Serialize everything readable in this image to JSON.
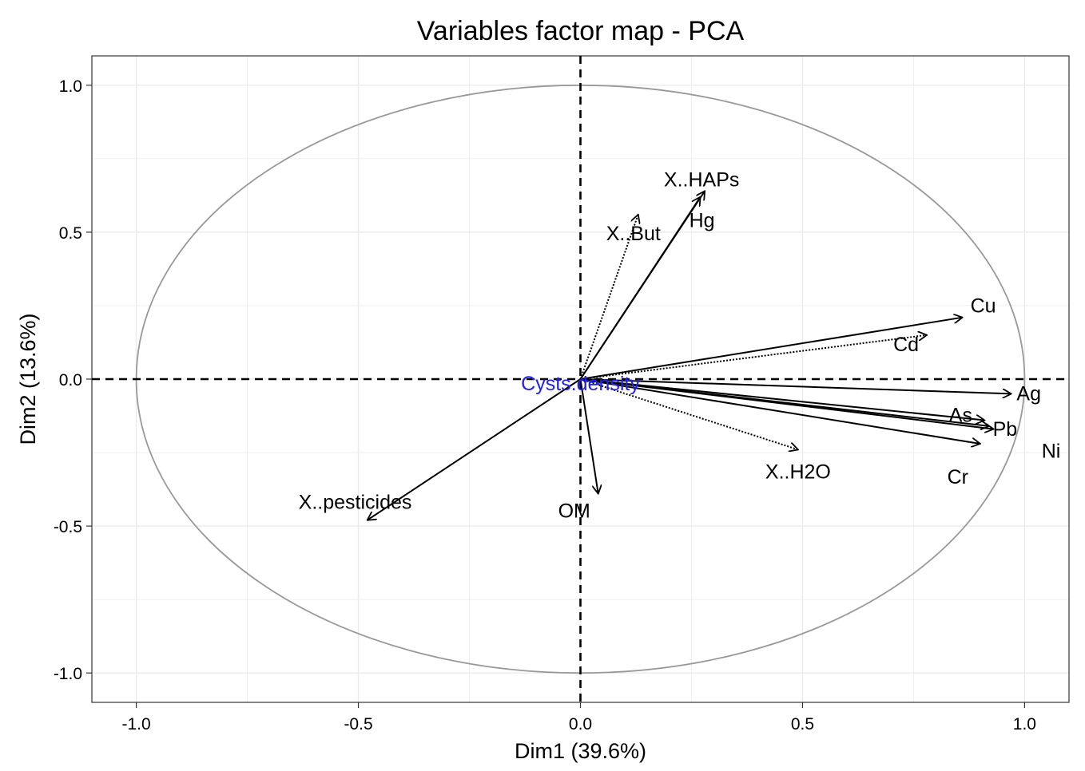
{
  "chart_data": {
    "type": "scatter",
    "subtype": "pca-variables-factor-map",
    "title": "Variables factor map - PCA",
    "xlabel": "Dim1 (39.6%)",
    "ylabel": "Dim2 (13.6%)",
    "xlim": [
      -1.1,
      1.1
    ],
    "ylim": [
      -1.1,
      1.1
    ],
    "x_ticks": [
      -1.0,
      -0.5,
      0.0,
      0.5,
      1.0
    ],
    "y_ticks": [
      -1.0,
      -0.5,
      0.0,
      0.5,
      1.0
    ],
    "x_tick_labels": [
      "-1.0",
      "-0.5",
      "0.0",
      "0.5",
      "1.0"
    ],
    "y_tick_labels": [
      "-1.0",
      "-0.5",
      "0.0",
      "0.5",
      "1.0"
    ],
    "grid": true,
    "unit_circle": true,
    "variables": [
      {
        "name": "Cu",
        "x": 0.86,
        "y": 0.21
      },
      {
        "name": "Cd",
        "x": 0.78,
        "y": 0.15
      },
      {
        "name": "Ag",
        "x": 0.97,
        "y": -0.05
      },
      {
        "name": "As",
        "x": 0.91,
        "y": -0.14
      },
      {
        "name": "Pb",
        "x": 0.92,
        "y": -0.16
      },
      {
        "name": "Ni",
        "x": 0.93,
        "y": -0.17
      },
      {
        "name": "Cr",
        "x": 0.9,
        "y": -0.22
      },
      {
        "name": "X..H2O",
        "x": 0.49,
        "y": -0.24
      },
      {
        "name": "X..HAPs",
        "x": 0.28,
        "y": 0.64
      },
      {
        "name": "Hg",
        "x": 0.27,
        "y": 0.62
      },
      {
        "name": "X..But",
        "x": 0.13,
        "y": 0.56
      },
      {
        "name": "OM",
        "x": 0.04,
        "y": -0.39
      },
      {
        "name": "X..pesticides",
        "x": -0.48,
        "y": -0.48
      }
    ],
    "supplementary": [
      {
        "name": "Cysts.density",
        "x": 0.05,
        "y": -0.02,
        "color": "#2222ee"
      }
    ]
  }
}
